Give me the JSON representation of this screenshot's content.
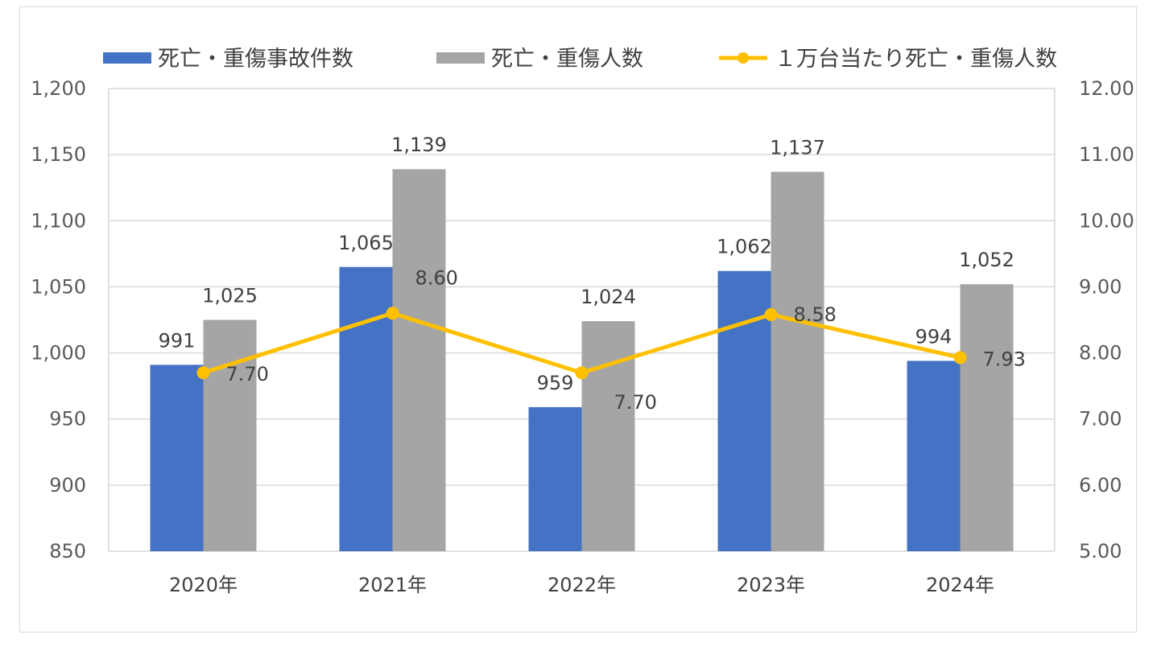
{
  "chart_data": {
    "type": "bar",
    "categories": [
      "2020年",
      "2021年",
      "2022年",
      "2023年",
      "2024年"
    ],
    "series": [
      {
        "name": "死亡・重傷事故件数",
        "type": "bar",
        "axis": "left",
        "color": "#4472c4",
        "values": [
          991,
          1065,
          959,
          1062,
          994
        ],
        "labels": [
          "991",
          "1,065",
          "959",
          "1,062",
          "994"
        ]
      },
      {
        "name": "死亡・重傷人数",
        "type": "bar",
        "axis": "left",
        "color": "#a5a5a5",
        "values": [
          1025,
          1139,
          1024,
          1137,
          1052
        ],
        "labels": [
          "1,025",
          "1,139",
          "1,024",
          "1,137",
          "1,052"
        ]
      },
      {
        "name": "１万台当たり死亡・重傷人数",
        "type": "line",
        "axis": "right",
        "color": "#ffc000",
        "values": [
          7.7,
          8.6,
          7.7,
          8.58,
          7.93
        ],
        "labels": [
          "7.70",
          "8.60",
          "7.70",
          "8.58",
          "7.93"
        ]
      }
    ],
    "y_left": {
      "min": 850,
      "max": 1200,
      "ticks": [
        "850",
        "900",
        "950",
        "1,000",
        "1,050",
        "1,100",
        "1,150",
        "1,200"
      ]
    },
    "y_right": {
      "min": 5,
      "max": 12,
      "ticks": [
        "5.00",
        "6.00",
        "7.00",
        "8.00",
        "9.00",
        "10.00",
        "11.00",
        "12.00"
      ]
    },
    "grid": true,
    "legend_position": "top"
  }
}
